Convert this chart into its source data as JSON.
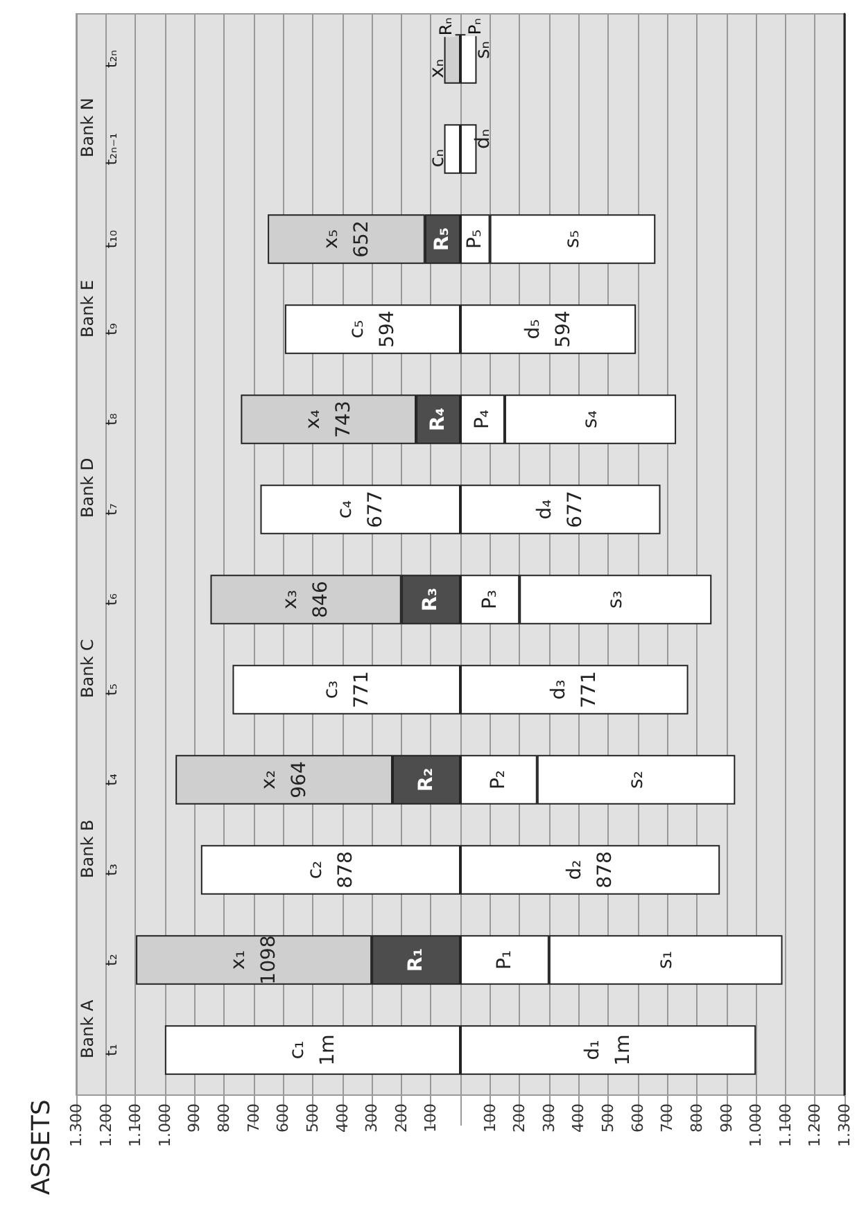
{
  "chart_data": {
    "type": "bar",
    "orientation": "horizontal",
    "stacked": true,
    "ylabel": "ASSETS",
    "categories": [
      "t₂ₙ",
      "t₂ₙ₋₁",
      "t₁₀",
      "t₉",
      "t₈",
      "t₇",
      "t₆",
      "t₅",
      "t₄",
      "t₃",
      "t₂",
      "t₁"
    ],
    "series": [
      {
        "color": "#ffffff",
        "values": [
          null,
          55,
          null,
          594,
          null,
          677,
          null,
          771,
          null,
          878,
          null,
          1000
        ],
        "value_labels": [
          null,
          "cₙ",
          null,
          "c₅\n594",
          null,
          "c₄\n677",
          null,
          "c₃\n771",
          null,
          "c₂\n878",
          null,
          "c₁\n1m"
        ]
      },
      {
        "color": "#4d4d4d",
        "values": [
          null,
          null,
          120,
          null,
          150,
          null,
          200,
          null,
          230,
          null,
          300,
          null
        ],
        "value_labels": [
          null,
          null,
          "R₅",
          null,
          "R₄",
          null,
          "R₃",
          null,
          "R₂",
          null,
          "R₁",
          null
        ]
      },
      {
        "color": "#cfcfcf",
        "values": [
          55,
          null,
          532,
          null,
          593,
          null,
          646,
          null,
          734,
          null,
          798,
          null
        ],
        "value_labels": [
          "xₙ",
          null,
          "x₅\n652",
          null,
          "x₄\n743",
          null,
          "x₃\n846",
          null,
          "x₂\n964",
          null,
          "x₁\n1098",
          null
        ]
      },
      {
        "color": "#ffffff",
        "values": [
          null,
          -55,
          null,
          -594,
          null,
          -677,
          null,
          -771,
          null,
          -878,
          null,
          -1000
        ],
        "value_labels": [
          null,
          "dₙ",
          null,
          "d₅\n594",
          null,
          "d₄\n677",
          null,
          "d₃\n771",
          null,
          "d₂\n878",
          null,
          "d₁\n1m"
        ]
      },
      {
        "color": "#ffffff",
        "values": [
          null,
          null,
          -100,
          null,
          -150,
          null,
          -200,
          null,
          -260,
          null,
          -300,
          null
        ],
        "value_labels": [
          null,
          null,
          "P₅",
          null,
          "P₄",
          null,
          "P₃",
          null,
          "P₂",
          null,
          "P₁",
          null
        ]
      },
      {
        "color": "#ffffff",
        "values": [
          -55,
          null,
          -560,
          null,
          -580,
          null,
          -650,
          null,
          -670,
          null,
          -790,
          null
        ],
        "value_labels": [
          "sₙ",
          null,
          "s₅",
          null,
          "s₄",
          null,
          "s₃",
          null,
          "s₂",
          null,
          "s₁",
          null
        ]
      }
    ],
    "xlim": [
      1300,
      -1300
    ],
    "xticks": [
      {
        "value": 1300,
        "label": "1.300"
      },
      {
        "value": 1200,
        "label": "1.200"
      },
      {
        "value": 1100,
        "label": "1.100"
      },
      {
        "value": 1000,
        "label": "1.000"
      },
      900,
      800,
      700,
      600,
      500,
      400,
      300,
      200,
      100,
      {
        "value": 0,
        "label": null
      },
      {
        "value": -100,
        "label": "100"
      },
      {
        "value": -200,
        "label": "200"
      },
      {
        "value": -300,
        "label": "300"
      },
      {
        "value": -400,
        "label": "400"
      },
      {
        "value": -500,
        "label": "500"
      },
      {
        "value": -600,
        "label": "600"
      },
      {
        "value": -700,
        "label": "700"
      },
      {
        "value": -800,
        "label": "800"
      },
      {
        "value": -900,
        "label": "900"
      },
      {
        "value": -1000,
        "label": "1.000"
      },
      {
        "value": -1100,
        "label": "1.100"
      },
      {
        "value": -1200,
        "label": "1.200"
      },
      {
        "value": -1300,
        "label": "1.300"
      }
    ],
    "grid": "x",
    "annotations": [
      "Bank A",
      "Bank B",
      "Bank C",
      "Bank D",
      "Bank E",
      "Bank N",
      {
        "text": "Rₙ",
        "x": 50,
        "y": "t₂ₙ"
      },
      {
        "text": "Pₙ",
        "x": -50,
        "y": "t₂ₙ"
      }
    ]
  }
}
